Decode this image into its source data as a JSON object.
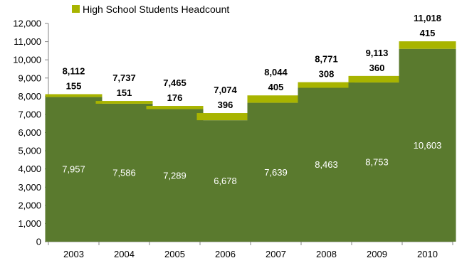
{
  "chart_data": {
    "type": "bar",
    "stacked": true,
    "categories": [
      "2003",
      "2004",
      "2005",
      "2006",
      "2007",
      "2008",
      "2009",
      "2010"
    ],
    "series": [
      {
        "values": [
          7957,
          7586,
          7289,
          6678,
          7639,
          8463,
          8753,
          10603
        ],
        "color": "#5a7a2e"
      },
      {
        "name": "High School Students Headcount",
        "values": [
          155,
          151,
          176,
          396,
          405,
          308,
          360,
          415
        ],
        "color": "#a8b400"
      }
    ],
    "value_labels": [
      [
        "7,957",
        "7,586",
        "7,289",
        "6,678",
        "7,639",
        "8,463",
        "8,753",
        "10,603"
      ],
      [
        "155",
        "151",
        "176",
        "396",
        "405",
        "308",
        "360",
        "415"
      ]
    ],
    "totals": [
      8112,
      7737,
      7465,
      7074,
      8044,
      8771,
      9113,
      11018
    ],
    "total_labels": [
      "8,112",
      "7,737",
      "7,465",
      "7,074",
      "8,044",
      "8,771",
      "9,113",
      "11,018"
    ],
    "ylim": [
      0,
      12000
    ],
    "yticks": [
      0,
      1000,
      2000,
      3000,
      4000,
      5000,
      6000,
      7000,
      8000,
      9000,
      10000,
      11000,
      12000
    ],
    "ytick_labels": [
      "0",
      "1,000",
      "2,000",
      "3,000",
      "4,000",
      "5,000",
      "6,000",
      "7,000",
      "8,000",
      "9,000",
      "10,000",
      "11,000",
      "12,000"
    ],
    "legend_position": "top-left",
    "grid": false,
    "axis_color": "#868686"
  }
}
